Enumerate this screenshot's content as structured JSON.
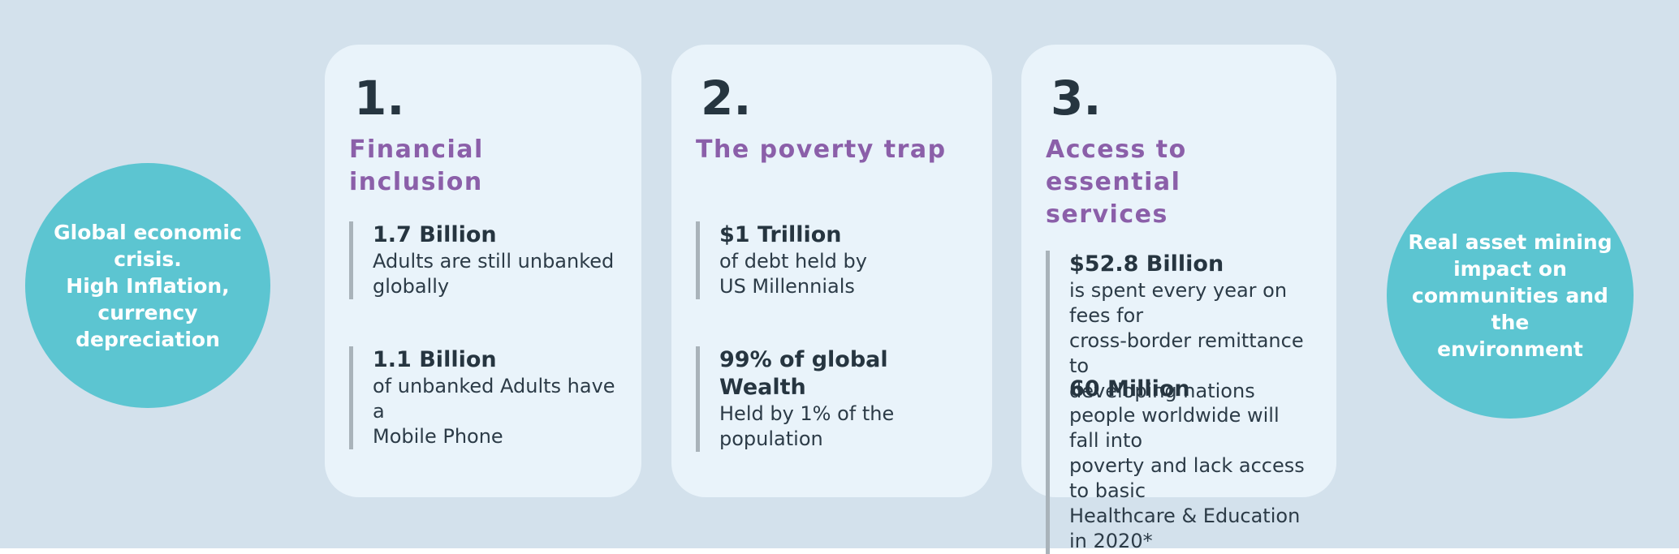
{
  "page": {
    "background_color": "#d3e1ec",
    "card_background_color": "#e9f3fa",
    "accent_teal": "#5cc5d1",
    "accent_purple": "#8b5fa9",
    "text_dark": "#263540",
    "stat_bar_color": "#a9b3ba"
  },
  "left_circle": {
    "text": "Global economic\ncrisis.\nHigh Inflation,\ncurrency\ndepreciation"
  },
  "right_circle": {
    "text": "Real asset  mining\nimpact on\ncommunities and the\nenvironment"
  },
  "cards": [
    {
      "number": "1.",
      "title": "Financial inclusion",
      "stats": [
        {
          "value": "1.7 Billion",
          "description": "Adults are still unbanked\nglobally"
        },
        {
          "value": "1.1 Billion",
          "description": "of unbanked Adults have a\nMobile Phone"
        }
      ]
    },
    {
      "number": "2.",
      "title": "The poverty trap",
      "stats": [
        {
          "value": "$1 Trillion",
          "description": "of debt held by\nUS Millennials"
        },
        {
          "value": "99% of global Wealth",
          "description": "Held by 1% of the\npopulation"
        }
      ]
    },
    {
      "number": "3.",
      "title": "Access to essential\nservices",
      "stats": [
        {
          "value": "$52.8 Billion",
          "description": "is spent every year on fees for\ncross-border remittance to\ndeveloping nations"
        },
        {
          "value": "60 Million",
          "description": "people worldwide will fall into\npoverty and lack access to basic\nHealthcare & Education in 2020*"
        }
      ]
    }
  ]
}
